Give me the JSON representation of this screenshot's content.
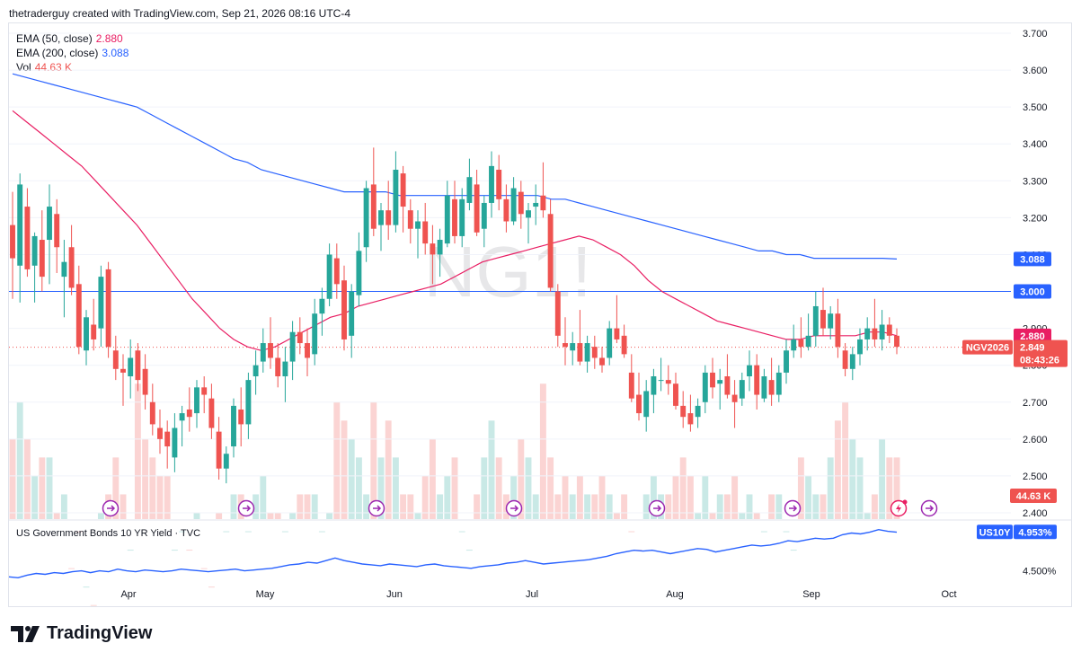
{
  "header": {
    "text": "thetraderguy created with TradingView.com, Sep 21, 2026 08:16 UTC-4"
  },
  "legend": [
    {
      "name": "EMA (50, close)",
      "value": "2.880",
      "color": "#e91e63"
    },
    {
      "name": "EMA (200, close)",
      "value": "3.088",
      "color": "#2962ff"
    },
    {
      "name": "Vol",
      "value": "44.63 K",
      "color": "#ef5350"
    }
  ],
  "watermark": "NG1!",
  "subpane_title": "US Government Bonds 10 YR Yield · TVC",
  "logo_text": "TradingView",
  "colors": {
    "up": "#26a69a",
    "down": "#ef5350",
    "ema50": "#e91e63",
    "ema200": "#2962ff",
    "us10y": "#2962ff"
  },
  "chart_data": {
    "type": "candlestick",
    "x_labels": [
      "Apr",
      "May",
      "Jun",
      "Jul",
      "Aug",
      "Sep",
      "Oct"
    ],
    "y_ticks": [
      "3.700",
      "3.600",
      "3.500",
      "3.400",
      "3.300",
      "3.200",
      "3.100",
      "3.000",
      "2.900",
      "2.800",
      "2.700",
      "2.600",
      "2.500",
      "2.400"
    ],
    "ylim": [
      2.38,
      3.72
    ],
    "horizontal_line": 3.0,
    "price_labels": {
      "ema200": "3.088",
      "level": "3.000",
      "ema50": "2.880",
      "symbol": "NGV2026",
      "last": "2.849",
      "countdown": "08:43:26",
      "volume": "44.63 K"
    },
    "candles": [
      [
        3.18,
        3.27,
        2.98,
        3.09
      ],
      [
        3.07,
        3.32,
        2.97,
        3.29
      ],
      [
        3.23,
        3.28,
        3.04,
        3.06
      ],
      [
        3.07,
        3.16,
        2.97,
        3.15
      ],
      [
        3.14,
        3.22,
        3.0,
        3.04
      ],
      [
        3.14,
        3.29,
        3.02,
        3.23
      ],
      [
        3.21,
        3.25,
        3.05,
        3.12
      ],
      [
        3.04,
        3.14,
        2.93,
        3.08
      ],
      [
        3.12,
        3.18,
        2.99,
        3.01
      ],
      [
        3.02,
        3.07,
        2.83,
        2.85
      ],
      [
        2.84,
        2.95,
        2.8,
        2.93
      ],
      [
        2.91,
        2.98,
        2.84,
        2.87
      ],
      [
        2.9,
        3.07,
        2.85,
        3.04
      ],
      [
        3.06,
        3.08,
        2.82,
        2.85
      ],
      [
        2.84,
        2.88,
        2.76,
        2.79
      ],
      [
        2.79,
        2.83,
        2.69,
        2.78
      ],
      [
        2.77,
        2.87,
        2.71,
        2.82
      ],
      [
        2.84,
        2.86,
        2.73,
        2.76
      ],
      [
        2.79,
        2.83,
        2.68,
        2.72
      ],
      [
        2.7,
        2.75,
        2.61,
        2.64
      ],
      [
        2.63,
        2.68,
        2.56,
        2.6
      ],
      [
        2.62,
        2.65,
        2.52,
        2.58
      ],
      [
        2.55,
        2.67,
        2.51,
        2.63
      ],
      [
        2.65,
        2.69,
        2.58,
        2.67
      ],
      [
        2.68,
        2.74,
        2.62,
        2.66
      ],
      [
        2.67,
        2.76,
        2.63,
        2.74
      ],
      [
        2.74,
        2.77,
        2.67,
        2.72
      ],
      [
        2.71,
        2.75,
        2.6,
        2.63
      ],
      [
        2.62,
        2.66,
        2.49,
        2.52
      ],
      [
        2.52,
        2.58,
        2.48,
        2.56
      ],
      [
        2.58,
        2.71,
        2.55,
        2.69
      ],
      [
        2.68,
        2.74,
        2.58,
        2.64
      ],
      [
        2.64,
        2.78,
        2.6,
        2.76
      ],
      [
        2.77,
        2.84,
        2.72,
        2.8
      ],
      [
        2.81,
        2.9,
        2.78,
        2.86
      ],
      [
        2.86,
        2.93,
        2.79,
        2.82
      ],
      [
        2.82,
        2.86,
        2.74,
        2.77
      ],
      [
        2.77,
        2.85,
        2.7,
        2.81
      ],
      [
        2.81,
        2.92,
        2.76,
        2.89
      ],
      [
        2.89,
        2.93,
        2.83,
        2.86
      ],
      [
        2.86,
        2.9,
        2.77,
        2.82
      ],
      [
        2.83,
        2.98,
        2.8,
        2.94
      ],
      [
        2.94,
        3.01,
        2.88,
        2.98
      ],
      [
        2.98,
        3.13,
        2.96,
        3.1
      ],
      [
        3.09,
        3.13,
        2.98,
        3.02
      ],
      [
        3.03,
        3.07,
        2.84,
        2.87
      ],
      [
        2.88,
        3.02,
        2.82,
        3.0
      ],
      [
        2.99,
        3.16,
        2.96,
        3.11
      ],
      [
        3.12,
        3.3,
        3.08,
        3.28
      ],
      [
        3.29,
        3.39,
        3.15,
        3.17
      ],
      [
        3.18,
        3.24,
        3.11,
        3.22
      ],
      [
        3.22,
        3.3,
        3.14,
        3.18
      ],
      [
        3.18,
        3.38,
        3.16,
        3.33
      ],
      [
        3.32,
        3.34,
        3.16,
        3.23
      ],
      [
        3.22,
        3.25,
        3.13,
        3.17
      ],
      [
        3.17,
        3.22,
        3.09,
        3.19
      ],
      [
        3.19,
        3.24,
        3.1,
        3.13
      ],
      [
        3.13,
        3.18,
        3.02,
        3.1
      ],
      [
        3.1,
        3.17,
        3.04,
        3.14
      ],
      [
        3.13,
        3.3,
        3.12,
        3.26
      ],
      [
        3.25,
        3.3,
        3.13,
        3.15
      ],
      [
        3.15,
        3.28,
        3.12,
        3.25
      ],
      [
        3.24,
        3.36,
        3.22,
        3.31
      ],
      [
        3.29,
        3.33,
        3.15,
        3.16
      ],
      [
        3.17,
        3.26,
        3.12,
        3.24
      ],
      [
        3.24,
        3.38,
        3.2,
        3.34
      ],
      [
        3.33,
        3.37,
        3.22,
        3.25
      ],
      [
        3.25,
        3.29,
        3.16,
        3.19
      ],
      [
        3.19,
        3.31,
        3.18,
        3.28
      ],
      [
        3.27,
        3.3,
        3.17,
        3.21
      ],
      [
        3.2,
        3.24,
        3.13,
        3.22
      ],
      [
        3.23,
        3.29,
        3.18,
        3.24
      ],
      [
        3.26,
        3.35,
        3.2,
        3.22
      ],
      [
        3.21,
        3.25,
        3.0,
        3.01
      ],
      [
        3.0,
        3.02,
        2.85,
        2.88
      ],
      [
        2.86,
        2.93,
        2.8,
        2.85
      ],
      [
        2.84,
        2.89,
        2.8,
        2.86
      ],
      [
        2.86,
        2.95,
        2.8,
        2.81
      ],
      [
        2.81,
        2.88,
        2.78,
        2.86
      ],
      [
        2.85,
        2.88,
        2.79,
        2.82
      ],
      [
        2.82,
        2.85,
        2.78,
        2.8
      ],
      [
        2.82,
        2.92,
        2.8,
        2.9
      ],
      [
        2.9,
        2.99,
        2.86,
        2.87
      ],
      [
        2.88,
        2.91,
        2.82,
        2.83
      ],
      [
        2.78,
        2.83,
        2.7,
        2.71
      ],
      [
        2.72,
        2.78,
        2.65,
        2.67
      ],
      [
        2.66,
        2.76,
        2.62,
        2.73
      ],
      [
        2.72,
        2.79,
        2.67,
        2.77
      ],
      [
        2.76,
        2.82,
        2.73,
        2.76
      ],
      [
        2.76,
        2.8,
        2.72,
        2.75
      ],
      [
        2.75,
        2.78,
        2.68,
        2.69
      ],
      [
        2.69,
        2.73,
        2.63,
        2.66
      ],
      [
        2.67,
        2.72,
        2.62,
        2.64
      ],
      [
        2.66,
        2.71,
        2.63,
        2.69
      ],
      [
        2.7,
        2.8,
        2.67,
        2.78
      ],
      [
        2.78,
        2.82,
        2.71,
        2.74
      ],
      [
        2.75,
        2.79,
        2.68,
        2.76
      ],
      [
        2.77,
        2.83,
        2.71,
        2.72
      ],
      [
        2.72,
        2.76,
        2.63,
        2.7
      ],
      [
        2.71,
        2.78,
        2.69,
        2.76
      ],
      [
        2.77,
        2.84,
        2.73,
        2.8
      ],
      [
        2.8,
        2.83,
        2.68,
        2.72
      ],
      [
        2.71,
        2.79,
        2.7,
        2.77
      ],
      [
        2.76,
        2.82,
        2.69,
        2.72
      ],
      [
        2.72,
        2.8,
        2.7,
        2.78
      ],
      [
        2.78,
        2.87,
        2.75,
        2.84
      ],
      [
        2.84,
        2.91,
        2.82,
        2.87
      ],
      [
        2.87,
        2.93,
        2.82,
        2.85
      ],
      [
        2.85,
        2.94,
        2.84,
        2.88
      ],
      [
        2.88,
        3.0,
        2.85,
        2.96
      ],
      [
        2.95,
        3.01,
        2.88,
        2.9
      ],
      [
        2.9,
        2.96,
        2.87,
        2.94
      ],
      [
        2.94,
        2.98,
        2.82,
        2.85
      ],
      [
        2.84,
        2.86,
        2.77,
        2.79
      ],
      [
        2.79,
        2.85,
        2.76,
        2.83
      ],
      [
        2.83,
        2.9,
        2.8,
        2.87
      ],
      [
        2.87,
        2.93,
        2.84,
        2.9
      ],
      [
        2.9,
        2.98,
        2.85,
        2.87
      ],
      [
        2.87,
        2.95,
        2.84,
        2.91
      ],
      [
        2.91,
        2.93,
        2.86,
        2.88
      ],
      [
        2.88,
        2.9,
        2.83,
        2.85
      ]
    ],
    "volume": [
      2.6,
      2.7,
      2.6,
      2.5,
      2.55,
      2.55,
      2.4,
      2.45,
      2.25,
      2.35,
      2.2,
      2.15,
      2.4,
      2.45,
      2.55,
      2.45,
      2.3,
      2.75,
      2.6,
      2.55,
      2.5,
      2.5,
      2.3,
      2.35,
      2.3,
      2.4,
      2.25,
      2.2,
      2.4,
      2.35,
      2.45,
      2.45,
      2.35,
      2.45,
      2.5,
      2.4,
      2.4,
      2.35,
      2.4,
      2.45,
      2.45,
      2.45,
      2.35,
      2.4,
      2.7,
      2.65,
      2.6,
      2.55,
      2.45,
      2.7,
      2.55,
      2.65,
      2.55,
      2.45,
      2.45,
      2.4,
      2.5,
      2.6,
      2.45,
      2.5,
      2.55,
      2.35,
      2.3,
      2.45,
      2.55,
      2.65,
      2.55,
      2.45,
      2.5,
      2.6,
      2.55,
      2.45,
      2.75,
      2.55,
      2.45,
      2.5,
      2.45,
      2.5,
      2.45,
      2.45,
      2.5,
      2.45,
      2.4,
      2.45,
      2.35,
      2.3,
      2.45,
      2.5,
      2.45,
      2.45,
      2.5,
      2.55,
      2.5,
      2.4,
      2.5,
      2.4,
      2.45,
      2.45,
      2.5,
      2.4,
      2.45,
      2.4,
      2.35,
      2.45,
      2.45,
      2.35,
      2.3,
      2.55,
      2.5,
      2.45,
      2.45,
      2.55,
      2.65,
      2.7,
      2.6,
      2.55,
      2.4,
      2.45,
      2.6,
      2.55,
      2.55,
      2.55
    ],
    "ema50": [
      3.49,
      3.46,
      3.43,
      3.4,
      3.37,
      3.34,
      3.3,
      3.26,
      3.22,
      3.18,
      3.13,
      3.08,
      3.03,
      2.98,
      2.94,
      2.9,
      2.87,
      2.85,
      2.84,
      2.85,
      2.87,
      2.89,
      2.91,
      2.93,
      2.94,
      2.96,
      2.97,
      2.98,
      2.99,
      3.0,
      3.01,
      3.02,
      3.04,
      3.06,
      3.08,
      3.09,
      3.1,
      3.11,
      3.12,
      3.13,
      3.14,
      3.15,
      3.14,
      3.12,
      3.1,
      3.07,
      3.03,
      3.0,
      2.98,
      2.96,
      2.94,
      2.92,
      2.91,
      2.9,
      2.89,
      2.88,
      2.87,
      2.87,
      2.88,
      2.88,
      2.88,
      2.88,
      2.89,
      2.89,
      2.88
    ],
    "ema200": [
      3.59,
      3.58,
      3.57,
      3.56,
      3.55,
      3.54,
      3.53,
      3.52,
      3.51,
      3.5,
      3.48,
      3.46,
      3.44,
      3.42,
      3.4,
      3.38,
      3.36,
      3.35,
      3.33,
      3.32,
      3.31,
      3.3,
      3.29,
      3.28,
      3.27,
      3.27,
      3.27,
      3.27,
      3.26,
      3.26,
      3.26,
      3.26,
      3.26,
      3.26,
      3.26,
      3.26,
      3.26,
      3.26,
      3.26,
      3.25,
      3.25,
      3.24,
      3.23,
      3.22,
      3.21,
      3.2,
      3.19,
      3.18,
      3.17,
      3.16,
      3.15,
      3.14,
      3.13,
      3.12,
      3.11,
      3.11,
      3.1,
      3.1,
      3.09,
      3.09,
      3.09,
      3.09,
      3.09,
      3.09,
      3.088
    ],
    "us10y": {
      "label": "US10Y",
      "last": "4.953%",
      "tick": "4.500%",
      "values": [
        4.43,
        4.42,
        4.45,
        4.47,
        4.46,
        4.48,
        4.47,
        4.49,
        4.5,
        4.48,
        4.5,
        4.49,
        4.52,
        4.5,
        4.49,
        4.51,
        4.5,
        4.49,
        4.5,
        4.52,
        4.51,
        4.5,
        4.49,
        4.5,
        4.51,
        4.52,
        4.5,
        4.51,
        4.52,
        4.53,
        4.55,
        4.57,
        4.58,
        4.6,
        4.59,
        4.62,
        4.65,
        4.62,
        4.6,
        4.58,
        4.57,
        4.56,
        4.58,
        4.57,
        4.56,
        4.55,
        4.57,
        4.58,
        4.56,
        4.55,
        4.54,
        4.53,
        4.55,
        4.56,
        4.57,
        4.59,
        4.6,
        4.62,
        4.6,
        4.58,
        4.59,
        4.6,
        4.61,
        4.62,
        4.63,
        4.65,
        4.67,
        4.7,
        4.72,
        4.74,
        4.73,
        4.74,
        4.72,
        4.7,
        4.72,
        4.74,
        4.76,
        4.75,
        4.72,
        4.74,
        4.76,
        4.78,
        4.8,
        4.79,
        4.8,
        4.82,
        4.85,
        4.84,
        4.86,
        4.88,
        4.87,
        4.88,
        4.92,
        4.94,
        4.93,
        4.95,
        4.98,
        4.96,
        4.95
      ]
    }
  }
}
